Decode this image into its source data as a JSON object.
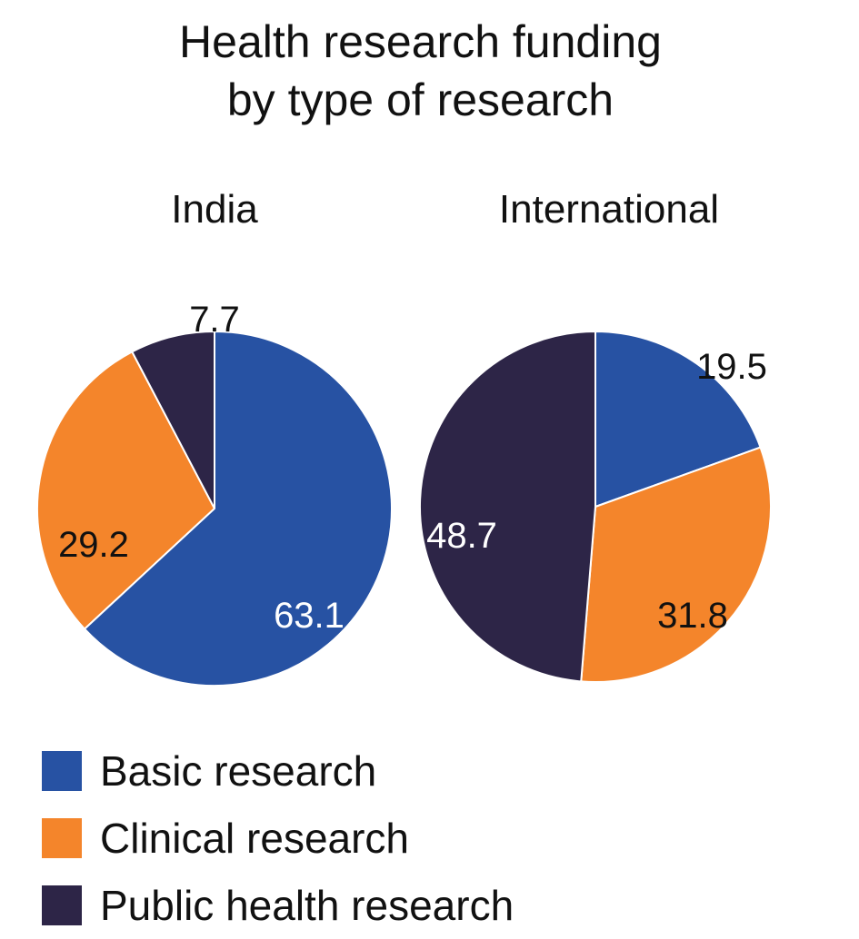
{
  "title_lines": [
    "Health research funding",
    "by type of research"
  ],
  "colors": {
    "basic": "#2752A3",
    "clinical": "#F4852B",
    "public_health": "#2D2547"
  },
  "legend": [
    {
      "key": "basic",
      "label": "Basic research",
      "color": "#2752A3"
    },
    {
      "key": "clinical",
      "label": "Clinical research",
      "color": "#F4852B"
    },
    {
      "key": "public_health",
      "label": "Public health research",
      "color": "#2D2547"
    }
  ],
  "chart_data": [
    {
      "type": "pie",
      "subtitle": "India",
      "slices": [
        {
          "name": "Basic research",
          "value": 63.1,
          "label": "63.1",
          "color": "#2752A3",
          "label_color": "#ffffff"
        },
        {
          "name": "Clinical research",
          "value": 29.2,
          "label": "29.2",
          "color": "#F4852B",
          "label_color": "#111111"
        },
        {
          "name": "Public health research",
          "value": 7.7,
          "label": "7.7",
          "color": "#2D2547",
          "label_color": "#111111"
        }
      ]
    },
    {
      "type": "pie",
      "subtitle": "International",
      "slices": [
        {
          "name": "Basic research",
          "value": 19.5,
          "label": "19.5",
          "color": "#2752A3",
          "label_color": "#111111"
        },
        {
          "name": "Clinical research",
          "value": 31.8,
          "label": "31.8",
          "color": "#F4852B",
          "label_color": "#111111"
        },
        {
          "name": "Public health research",
          "value": 48.7,
          "label": "48.7",
          "color": "#2D2547",
          "label_color": "#ffffff"
        }
      ]
    }
  ]
}
